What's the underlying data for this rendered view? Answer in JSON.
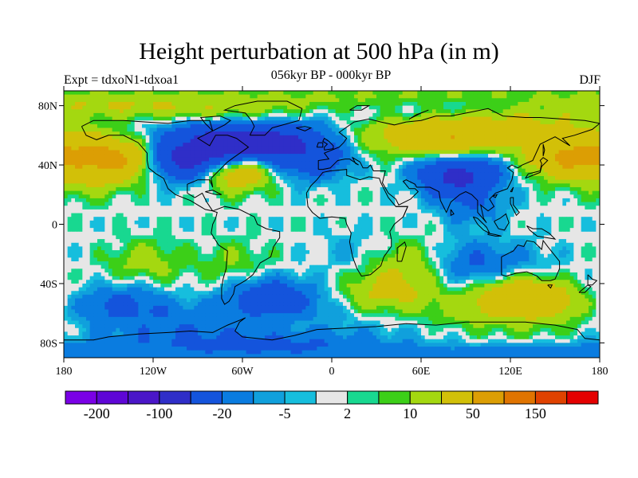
{
  "title": "Height perturbation at 500 hPa (in m)",
  "left_string": "Expt = tdxoN1-tdxoa1",
  "center_string": "056kyr BP - 000kyr BP",
  "right_string": "DJF",
  "map": {
    "projection": "cylindrical-equidistant",
    "lon_range": [
      -180,
      180
    ],
    "lat_range": [
      -90,
      90
    ],
    "lon_ticks": [
      {
        "value": -180,
        "label": "180"
      },
      {
        "value": -120,
        "label": "120W"
      },
      {
        "value": -60,
        "label": "60W"
      },
      {
        "value": 0,
        "label": "0"
      },
      {
        "value": 60,
        "label": "60E"
      },
      {
        "value": 120,
        "label": "120E"
      },
      {
        "value": 180,
        "label": "180"
      }
    ],
    "lat_ticks": [
      {
        "value": 80,
        "label": "80N"
      },
      {
        "value": 40,
        "label": "40N"
      },
      {
        "value": 0,
        "label": "0"
      },
      {
        "value": -40,
        "label": "40S"
      },
      {
        "value": -80,
        "label": "80S"
      }
    ],
    "field_features": [
      {
        "lon": -145,
        "lat": 45,
        "value": 60
      },
      {
        "lon": -165,
        "lat": 30,
        "value": 15
      },
      {
        "lon": -95,
        "lat": 45,
        "value": -80
      },
      {
        "lon": -55,
        "lat": 55,
        "value": -70
      },
      {
        "lon": -15,
        "lat": 45,
        "value": -40
      },
      {
        "lon": -65,
        "lat": 38,
        "value": 50
      },
      {
        "lon": -80,
        "lat": 80,
        "value": 20
      },
      {
        "lon": -20,
        "lat": 75,
        "value": 8
      },
      {
        "lon": 15,
        "lat": 80,
        "value": -15
      },
      {
        "lon": 80,
        "lat": 58,
        "value": 45
      },
      {
        "lon": 30,
        "lat": 55,
        "value": 15
      },
      {
        "lon": 155,
        "lat": 72,
        "value": 10
      },
      {
        "lon": 85,
        "lat": 33,
        "value": -60
      },
      {
        "lon": 95,
        "lat": 12,
        "value": -15
      },
      {
        "lon": 160,
        "lat": 45,
        "value": 55
      },
      {
        "lon": -125,
        "lat": -25,
        "value": 15
      },
      {
        "lon": -65,
        "lat": -25,
        "value": 10
      },
      {
        "lon": 15,
        "lat": -18,
        "value": -6
      },
      {
        "lon": 50,
        "lat": -25,
        "value": 15
      },
      {
        "lon": 95,
        "lat": -25,
        "value": -20
      },
      {
        "lon": 130,
        "lat": -25,
        "value": -8
      },
      {
        "lon": -140,
        "lat": -55,
        "value": -25
      },
      {
        "lon": -40,
        "lat": -50,
        "value": -35
      },
      {
        "lon": 40,
        "lat": -45,
        "value": 25
      },
      {
        "lon": 130,
        "lat": -50,
        "value": 50
      },
      {
        "lon": -100,
        "lat": -80,
        "value": -20
      },
      {
        "lon": 20,
        "lat": -80,
        "value": -10
      },
      {
        "lon": 140,
        "lat": -80,
        "value": 8
      }
    ]
  },
  "colorbar": {
    "colors": [
      "#7a00e6",
      "#5e06d6",
      "#4a16c8",
      "#2f2ec8",
      "#1454dc",
      "#0a7ce0",
      "#10a0dc",
      "#16bedd",
      "#e6e6e6",
      "#18d890",
      "#3ccf18",
      "#a4d810",
      "#d2c008",
      "#dc9e04",
      "#e07400",
      "#e04200",
      "#e40000"
    ],
    "labels": [
      {
        "after_box": 1,
        "text": "-200"
      },
      {
        "after_box": 3,
        "text": "-100"
      },
      {
        "after_box": 5,
        "text": "-20"
      },
      {
        "after_box": 7,
        "text": "-5"
      },
      {
        "after_box": 9,
        "text": "2"
      },
      {
        "after_box": 11,
        "text": "10"
      },
      {
        "after_box": 13,
        "text": "50"
      },
      {
        "after_box": 15,
        "text": "150"
      }
    ]
  },
  "contour_levels": [
    -250,
    -200,
    -150,
    -100,
    -50,
    -20,
    -10,
    -5,
    -2,
    2,
    5,
    10,
    20,
    50,
    100,
    150,
    200,
    250
  ]
}
